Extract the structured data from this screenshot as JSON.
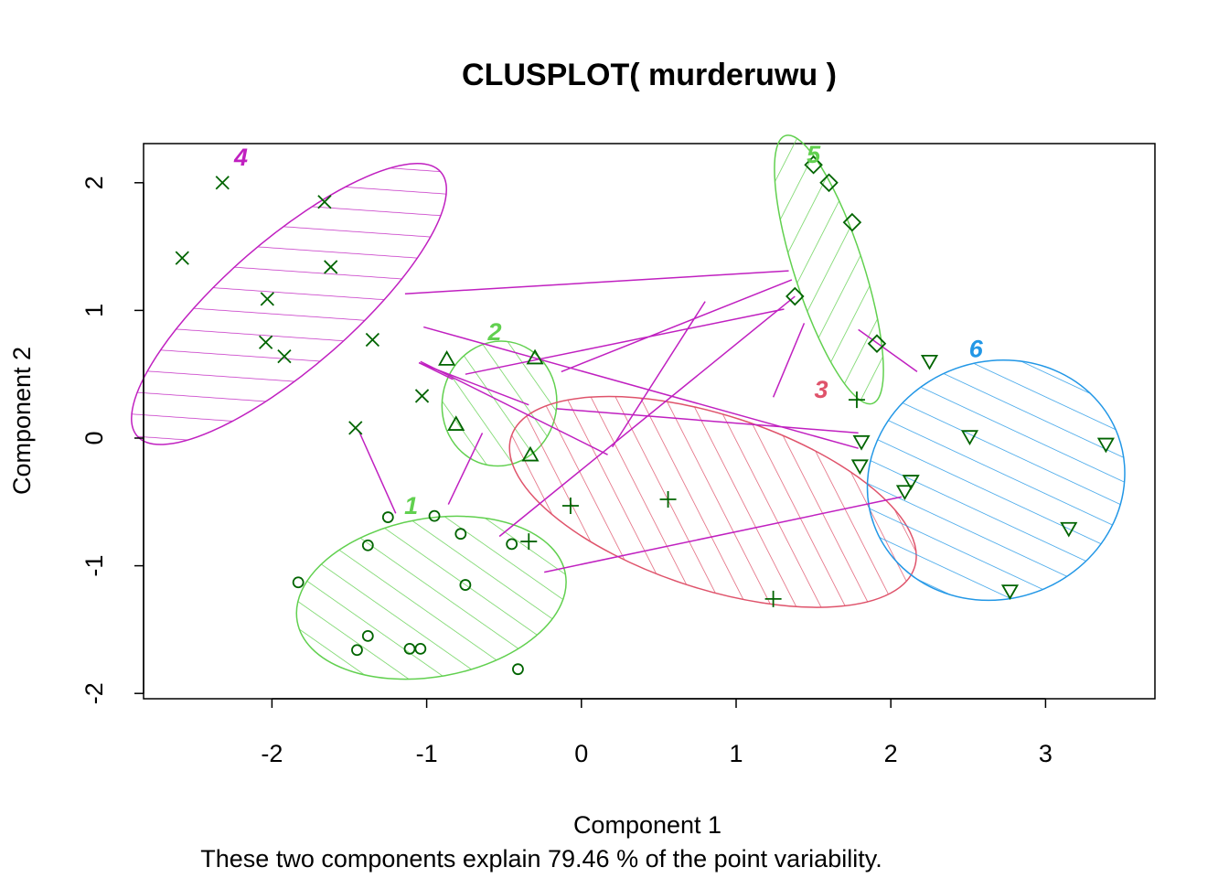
{
  "chart_data": {
    "type": "scatter",
    "title": "CLUSPLOT( murderuwu )",
    "xlabel": "Component 1",
    "ylabel": "Component 2",
    "subtitle": "These two components explain 79.46 % of the point variability.",
    "xlim": [
      -2.85,
      3.7
    ],
    "ylim": [
      -2.2,
      2.3
    ],
    "x_ticks": [
      -2,
      -1,
      0,
      1,
      2,
      3
    ],
    "y_ticks": [
      -2,
      -1,
      0,
      1,
      2
    ],
    "point_color": "#006400",
    "line_color": "#C020C0",
    "clusters": [
      {
        "label": "1",
        "color": "#61D04F",
        "symbol": "circle",
        "ellipse": {
          "cx": -0.97,
          "cy": -1.25,
          "rx": 0.88,
          "ry": 0.62,
          "angle": -10
        },
        "label_pos": [
          -1.1,
          -0.53
        ],
        "points": [
          [
            -1.83,
            -1.13
          ],
          [
            -1.38,
            -0.84
          ],
          [
            -1.25,
            -0.62
          ],
          [
            -0.95,
            -0.61
          ],
          [
            -0.78,
            -0.75
          ],
          [
            -0.75,
            -1.15
          ],
          [
            -0.45,
            -0.83
          ],
          [
            -1.38,
            -1.55
          ],
          [
            -1.45,
            -1.66
          ],
          [
            -1.11,
            -1.65
          ],
          [
            -1.04,
            -1.65
          ],
          [
            -0.41,
            -1.81
          ]
        ]
      },
      {
        "label": "2",
        "color": "#61D04F",
        "symbol": "triangle-up",
        "ellipse": {
          "cx": -0.53,
          "cy": 0.27,
          "rx": 0.37,
          "ry": 0.49,
          "angle": 10
        },
        "label_pos": [
          -0.56,
          0.83
        ],
        "points": [
          [
            -0.87,
            0.61
          ],
          [
            -0.3,
            0.62
          ],
          [
            -0.81,
            0.1
          ],
          [
            -0.33,
            -0.14
          ]
        ]
      },
      {
        "label": "3",
        "color": "#DF536B",
        "symbol": "plus",
        "ellipse": {
          "cx": 0.85,
          "cy": -0.5,
          "rx": 1.37,
          "ry": 0.68,
          "angle": 18
        },
        "label_pos": [
          1.55,
          0.38
        ],
        "points": [
          [
            1.78,
            0.3
          ],
          [
            -0.07,
            -0.53
          ],
          [
            0.56,
            -0.48
          ],
          [
            -0.34,
            -0.81
          ],
          [
            1.24,
            -1.26
          ]
        ]
      },
      {
        "label": "4",
        "color": "#C020C0",
        "symbol": "x",
        "ellipse": {
          "cx": -1.89,
          "cy": 1.05,
          "rx": 1.3,
          "ry": 0.5,
          "angle": -41
        },
        "label_pos": [
          -2.2,
          2.2
        ],
        "points": [
          [
            -2.58,
            1.41
          ],
          [
            -2.32,
            2.0
          ],
          [
            -1.66,
            1.85
          ],
          [
            -1.62,
            1.34
          ],
          [
            -2.03,
            1.09
          ],
          [
            -2.04,
            0.75
          ],
          [
            -1.92,
            0.64
          ],
          [
            -1.35,
            0.77
          ],
          [
            -1.03,
            0.33
          ],
          [
            -1.46,
            0.08
          ]
        ]
      },
      {
        "label": "5",
        "color": "#61D04F",
        "symbol": "diamond",
        "ellipse": {
          "cx": 1.6,
          "cy": 1.32,
          "rx": 0.91,
          "ry": 0.27,
          "angle": 72
        },
        "label_pos": [
          1.5,
          2.22
        ],
        "points": [
          [
            1.5,
            2.14
          ],
          [
            1.6,
            2.0
          ],
          [
            1.75,
            1.69
          ],
          [
            1.38,
            1.11
          ],
          [
            1.91,
            0.74
          ]
        ]
      },
      {
        "label": "6",
        "color": "#2297E6",
        "symbol": "triangle-down",
        "ellipse": {
          "cx": 2.68,
          "cy": -0.33,
          "rx": 0.84,
          "ry": 0.93,
          "angle": -20
        },
        "label_pos": [
          2.55,
          0.7
        ],
        "points": [
          [
            2.25,
            0.61
          ],
          [
            1.81,
            -0.02
          ],
          [
            2.51,
            0.02
          ],
          [
            3.39,
            -0.04
          ],
          [
            1.8,
            -0.21
          ],
          [
            2.13,
            -0.33
          ],
          [
            2.09,
            -0.41
          ],
          [
            3.15,
            -0.7
          ],
          [
            2.77,
            -1.19
          ]
        ]
      }
    ],
    "connecting_lines": [
      [
        [
          -1.14,
          1.13
        ],
        [
          1.34,
          1.31
        ]
      ],
      [
        [
          -1.02,
          0.87
        ],
        [
          1.79,
          -0.08
        ]
      ],
      [
        [
          -1.05,
          0.59
        ],
        [
          -0.34,
          0.26
        ]
      ],
      [
        [
          -1.05,
          0.59
        ],
        [
          -0.83,
          0.46
        ]
      ],
      [
        [
          -1.04,
          0.6
        ],
        [
          0.17,
          -0.13
        ]
      ],
      [
        [
          -0.75,
          0.5
        ],
        [
          1.31,
          1.01
        ]
      ],
      [
        [
          -0.13,
          0.52
        ],
        [
          1.36,
          1.24
        ]
      ],
      [
        [
          -0.16,
          0.23
        ],
        [
          1.79,
          0.04
        ]
      ],
      [
        [
          -0.53,
          -0.77
        ],
        [
          1.38,
          1.11
        ]
      ],
      [
        [
          -0.86,
          -0.52
        ],
        [
          -0.64,
          0.04
        ]
      ],
      [
        [
          -1.2,
          -0.59
        ],
        [
          -1.44,
          0.06
        ]
      ],
      [
        [
          0.2,
          -0.07
        ],
        [
          0.8,
          1.07
        ]
      ],
      [
        [
          1.24,
          0.32
        ],
        [
          1.44,
          0.9
        ]
      ],
      [
        [
          -0.24,
          -1.05
        ],
        [
          2.07,
          -0.46
        ]
      ],
      [
        [
          1.79,
          0.85
        ],
        [
          2.17,
          0.52
        ]
      ]
    ]
  }
}
